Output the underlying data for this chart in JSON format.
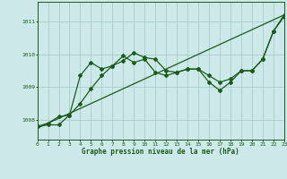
{
  "bg_color": "#cce8e8",
  "grid_color": "#aacccc",
  "line_color": "#1a5c1a",
  "xlabel": "Graphe pression niveau de la mer (hPa)",
  "xlim": [
    0,
    23
  ],
  "ylim": [
    1007.4,
    1011.6
  ],
  "yticks": [
    1008,
    1009,
    1010,
    1011
  ],
  "xticks": [
    0,
    1,
    2,
    3,
    4,
    5,
    6,
    7,
    8,
    9,
    10,
    11,
    12,
    13,
    14,
    15,
    16,
    17,
    18,
    19,
    20,
    21,
    22,
    23
  ],
  "series1_x": [
    0,
    1,
    2,
    3,
    4,
    5,
    6,
    7,
    8,
    9,
    10,
    11,
    12,
    13,
    14,
    15,
    16,
    17,
    18,
    19,
    20,
    21,
    22,
    23
  ],
  "series1_y": [
    1007.8,
    1007.9,
    1008.1,
    1008.15,
    1009.35,
    1009.75,
    1009.55,
    1009.65,
    1009.95,
    1009.75,
    1009.85,
    1009.45,
    1009.35,
    1009.45,
    1009.55,
    1009.55,
    1009.15,
    1008.9,
    1009.15,
    1009.5,
    1009.5,
    1009.85,
    1010.7,
    1011.2
  ],
  "series2_x": [
    0,
    1,
    2,
    3,
    4,
    5,
    6,
    7,
    8,
    9,
    10,
    11,
    12,
    13,
    14,
    15,
    16,
    17,
    18,
    19,
    20,
    21,
    22,
    23
  ],
  "series2_y": [
    1007.8,
    1007.85,
    1007.85,
    1008.15,
    1008.5,
    1008.95,
    1009.35,
    1009.65,
    1009.8,
    1010.05,
    1009.9,
    1009.85,
    1009.5,
    1009.45,
    1009.55,
    1009.55,
    1009.35,
    1009.15,
    1009.25,
    1009.5,
    1009.5,
    1009.85,
    1010.7,
    1011.15
  ],
  "series3_x": [
    0,
    23
  ],
  "series3_y": [
    1007.75,
    1011.2
  ],
  "marker": "D",
  "markersize": 2.0,
  "linewidth": 0.9
}
